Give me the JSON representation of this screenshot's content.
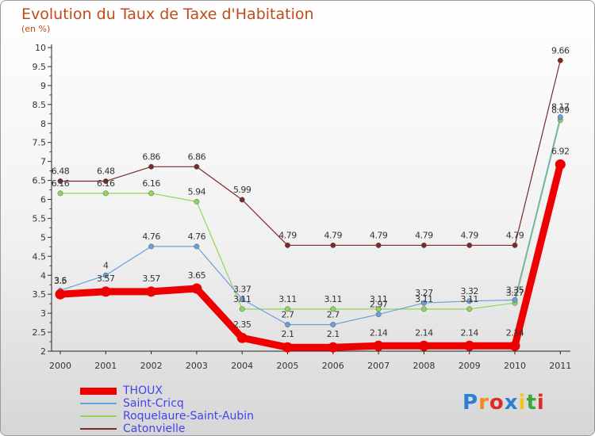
{
  "title": "Evolution du Taux de Taxe d'Habitation",
  "unit": "(en %)",
  "logo": {
    "text": "Proxiti",
    "colors": [
      "#2a7fd6",
      "#f08a1c",
      "#e02a2a",
      "#2a7fd6",
      "#f0c51c",
      "#3aa832",
      "#e02a2a"
    ]
  },
  "chart_data": {
    "type": "line",
    "title": "Evolution du Taux de Taxe d'Habitation",
    "ylabel": "(en %)",
    "xlabel": "",
    "ylim": [
      2,
      10
    ],
    "yticks": [
      "2",
      "2.5",
      "3",
      "3.5",
      "4",
      "4.5",
      "5",
      "5.5",
      "6",
      "6.5",
      "7",
      "7.5",
      "8",
      "8.5",
      "9",
      "9.5",
      "10"
    ],
    "categories": [
      "2000",
      "2001",
      "2002",
      "2003",
      "2004",
      "2005",
      "2006",
      "2007",
      "2008",
      "2009",
      "2010",
      "2011"
    ],
    "legend_position": "bottom-left",
    "series": [
      {
        "name": "Catonvielle",
        "color": "#7a2a2a",
        "values": [
          6.48,
          6.48,
          6.86,
          6.86,
          5.99,
          4.79,
          4.79,
          4.79,
          4.79,
          4.79,
          4.79,
          9.66
        ],
        "labels": [
          "6.48",
          "6.48",
          "6.86",
          "6.86",
          "5.99",
          "4.79",
          "4.79",
          "4.79",
          "4.79",
          "4.79",
          "4.79",
          "9.66"
        ]
      },
      {
        "name": "Roquelaure-Saint-Aubin",
        "color": "#8ed65a",
        "values": [
          6.16,
          6.16,
          6.16,
          5.94,
          3.11,
          3.11,
          3.11,
          3.11,
          3.11,
          3.11,
          3.27,
          8.09
        ],
        "labels": [
          "6.16",
          "6.16",
          "6.16",
          "5.94",
          "3.11",
          "3.11",
          "3.11",
          "3.11",
          "3.11",
          "3.11",
          "3.27",
          "8.09"
        ]
      },
      {
        "name": "Saint-Cricq",
        "color": "#6a9fd8",
        "values": [
          3.6,
          4.0,
          4.76,
          4.76,
          3.37,
          2.7,
          2.7,
          2.97,
          3.27,
          3.32,
          3.35,
          8.17
        ],
        "labels": [
          "3.6",
          "4",
          "4.76",
          "4.76",
          "3.37",
          "2.7",
          "2.7",
          "2.97",
          "3.27",
          "3.32",
          "3.35",
          "8.17"
        ]
      },
      {
        "name": "THOUX",
        "color": "#ee0000",
        "values": [
          3.5,
          3.57,
          3.57,
          3.65,
          2.35,
          2.1,
          2.1,
          2.14,
          2.14,
          2.14,
          2.14,
          6.92
        ],
        "labels": [
          "3.5",
          "3.57",
          "3.57",
          "3.65",
          "2.35",
          "2.1",
          "2.1",
          "2.14",
          "2.14",
          "2.14",
          "2.14",
          "6.92"
        ]
      }
    ]
  },
  "legend": [
    {
      "name": "THOUX",
      "color": "#ee0000",
      "thick": true
    },
    {
      "name": "Saint-Cricq",
      "color": "#6a9fd8",
      "thick": false
    },
    {
      "name": "Roquelaure-Saint-Aubin",
      "color": "#8ed65a",
      "thick": false
    },
    {
      "name": "Catonvielle",
      "color": "#7a2a2a",
      "thick": false
    }
  ]
}
